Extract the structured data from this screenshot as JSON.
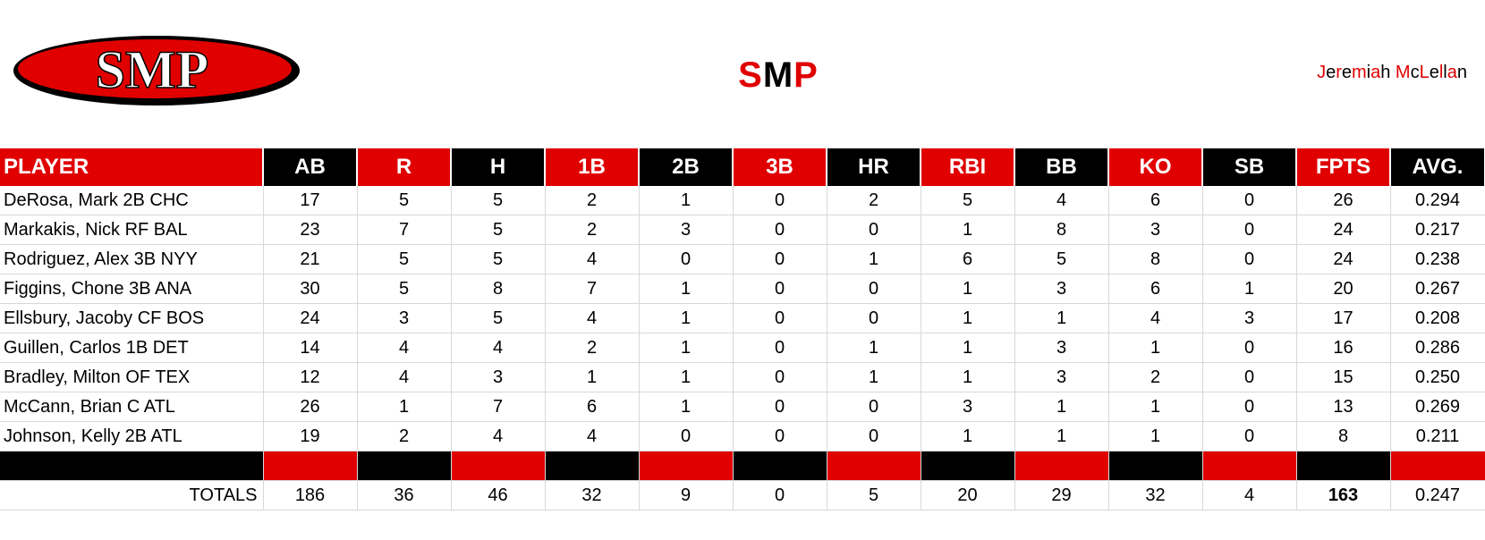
{
  "header": {
    "logo_text": "SMP",
    "title_parts": [
      {
        "text": "S",
        "color": "red"
      },
      {
        "text": "M",
        "color": "black"
      },
      {
        "text": "P",
        "color": "red"
      }
    ],
    "author_parts": [
      {
        "text": "J",
        "color": "red"
      },
      {
        "text": "e",
        "color": "black"
      },
      {
        "text": "r",
        "color": "red"
      },
      {
        "text": "e",
        "color": "black"
      },
      {
        "text": "m",
        "color": "red"
      },
      {
        "text": "i",
        "color": "black"
      },
      {
        "text": "a",
        "color": "red"
      },
      {
        "text": "h",
        "color": "black"
      },
      {
        "text": " ",
        "color": "black"
      },
      {
        "text": "M",
        "color": "red"
      },
      {
        "text": "c",
        "color": "black"
      },
      {
        "text": "L",
        "color": "red"
      },
      {
        "text": "e",
        "color": "black"
      },
      {
        "text": "l",
        "color": "red"
      },
      {
        "text": "l",
        "color": "black"
      },
      {
        "text": "a",
        "color": "red"
      },
      {
        "text": "n",
        "color": "black"
      }
    ]
  },
  "colors": {
    "red": "#e00000",
    "black": "#000000"
  },
  "table": {
    "columns": [
      {
        "label": "PLAYER",
        "bg": "red"
      },
      {
        "label": "AB",
        "bg": "black"
      },
      {
        "label": "R",
        "bg": "red"
      },
      {
        "label": "H",
        "bg": "black"
      },
      {
        "label": "1B",
        "bg": "red"
      },
      {
        "label": "2B",
        "bg": "black"
      },
      {
        "label": "3B",
        "bg": "red"
      },
      {
        "label": "HR",
        "bg": "black"
      },
      {
        "label": "RBI",
        "bg": "red"
      },
      {
        "label": "BB",
        "bg": "black"
      },
      {
        "label": "KO",
        "bg": "red"
      },
      {
        "label": "SB",
        "bg": "black"
      },
      {
        "label": "FPTS",
        "bg": "red"
      },
      {
        "label": "AVG.",
        "bg": "black"
      }
    ],
    "rows": [
      [
        "DeRosa, Mark 2B CHC",
        "17",
        "5",
        "5",
        "2",
        "1",
        "0",
        "2",
        "5",
        "4",
        "6",
        "0",
        "26",
        "0.294"
      ],
      [
        "Markakis, Nick RF BAL",
        "23",
        "7",
        "5",
        "2",
        "3",
        "0",
        "0",
        "1",
        "8",
        "3",
        "0",
        "24",
        "0.217"
      ],
      [
        "Rodriguez, Alex 3B NYY",
        "21",
        "5",
        "5",
        "4",
        "0",
        "0",
        "1",
        "6",
        "5",
        "8",
        "0",
        "24",
        "0.238"
      ],
      [
        "Figgins, Chone 3B ANA",
        "30",
        "5",
        "8",
        "7",
        "1",
        "0",
        "0",
        "1",
        "3",
        "6",
        "1",
        "20",
        "0.267"
      ],
      [
        "Ellsbury, Jacoby CF BOS",
        "24",
        "3",
        "5",
        "4",
        "1",
        "0",
        "0",
        "1",
        "1",
        "4",
        "3",
        "17",
        "0.208"
      ],
      [
        "Guillen, Carlos 1B DET",
        "14",
        "4",
        "4",
        "2",
        "1",
        "0",
        "1",
        "1",
        "3",
        "1",
        "0",
        "16",
        "0.286"
      ],
      [
        "Bradley, Milton OF TEX",
        "12",
        "4",
        "3",
        "1",
        "1",
        "0",
        "1",
        "1",
        "3",
        "2",
        "0",
        "15",
        "0.250"
      ],
      [
        "McCann, Brian C ATL",
        "26",
        "1",
        "7",
        "6",
        "1",
        "0",
        "0",
        "3",
        "1",
        "1",
        "0",
        "13",
        "0.269"
      ],
      [
        "Johnson, Kelly 2B ATL",
        "19",
        "2",
        "4",
        "4",
        "0",
        "0",
        "0",
        "1",
        "1",
        "1",
        "0",
        "8",
        "0.211"
      ]
    ],
    "band_colors": [
      "black",
      "red",
      "black",
      "red",
      "black",
      "red",
      "black",
      "red",
      "black",
      "red",
      "black",
      "red",
      "black",
      "red"
    ],
    "totals": [
      "TOTALS",
      "186",
      "36",
      "46",
      "32",
      "9",
      "0",
      "5",
      "20",
      "29",
      "32",
      "4",
      "163",
      "0.247"
    ],
    "totals_bold_index": 12
  }
}
